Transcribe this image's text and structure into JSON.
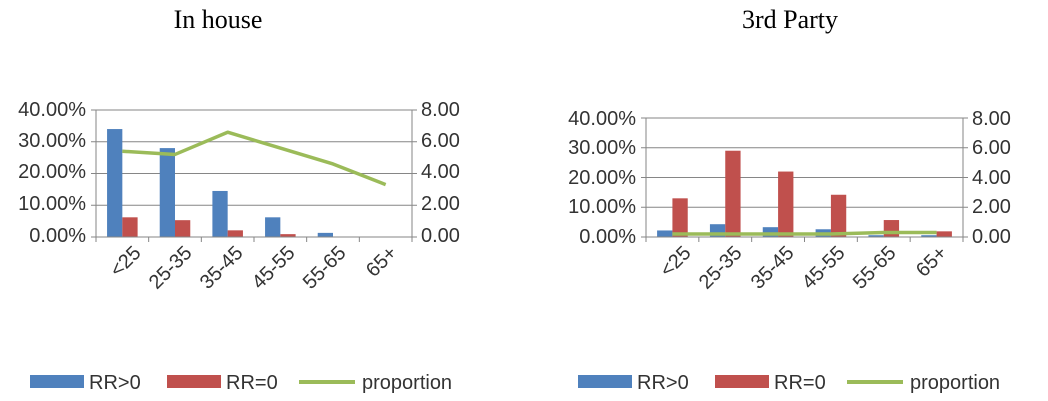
{
  "chart_data": [
    {
      "type": "bar",
      "title": "In house",
      "categories": [
        "<25",
        "25-35",
        "35-45",
        "45-55",
        "55-65",
        "65+"
      ],
      "y_left": {
        "ticks": [
          "40.00%",
          "30.00%",
          "20.00%",
          "10.00%",
          "0.00%"
        ],
        "ylim": [
          0,
          40
        ]
      },
      "y_right": {
        "ticks": [
          "8.00",
          "6.00",
          "4.00",
          "2.00",
          "0.00"
        ],
        "ylim": [
          0,
          8
        ]
      },
      "series": [
        {
          "name": "RR>0",
          "kind": "bar",
          "axis": "left",
          "color": "#4f81bd",
          "values": [
            34,
            28,
            14.5,
            6.2,
            1.3,
            0
          ]
        },
        {
          "name": "RR=0",
          "kind": "bar",
          "axis": "left",
          "color": "#c0504d",
          "values": [
            6.2,
            5.3,
            2.1,
            0.9,
            0,
            0
          ]
        },
        {
          "name": "proportion",
          "kind": "line",
          "axis": "right",
          "color": "#9bbb59",
          "values": [
            5.4,
            5.2,
            6.6,
            5.6,
            4.6,
            3.3
          ]
        }
      ],
      "grid": true,
      "legend": "bottom"
    },
    {
      "type": "bar",
      "title": "3rd Party",
      "categories": [
        "<25",
        "25-35",
        "35-45",
        "45-55",
        "55-65",
        "65+"
      ],
      "y_left": {
        "ticks": [
          "40.00%",
          "30.00%",
          "20.00%",
          "10.00%",
          "0.00%"
        ],
        "ylim": [
          0,
          40
        ]
      },
      "y_right": {
        "ticks": [
          "8.00",
          "6.00",
          "4.00",
          "2.00",
          "0.00"
        ],
        "ylim": [
          0,
          8
        ]
      },
      "series": [
        {
          "name": "RR>0",
          "kind": "bar",
          "axis": "left",
          "color": "#4f81bd",
          "values": [
            2.2,
            4.3,
            3.3,
            2.6,
            0.6,
            0.6
          ]
        },
        {
          "name": "RR=0",
          "kind": "bar",
          "axis": "left",
          "color": "#c0504d",
          "values": [
            13,
            29,
            22,
            14.2,
            5.7,
            1.9
          ]
        },
        {
          "name": "proportion",
          "kind": "line",
          "axis": "right",
          "color": "#9bbb59",
          "values": [
            0.2,
            0.2,
            0.2,
            0.2,
            0.3,
            0.3
          ]
        }
      ],
      "grid": true,
      "legend": "bottom"
    }
  ]
}
